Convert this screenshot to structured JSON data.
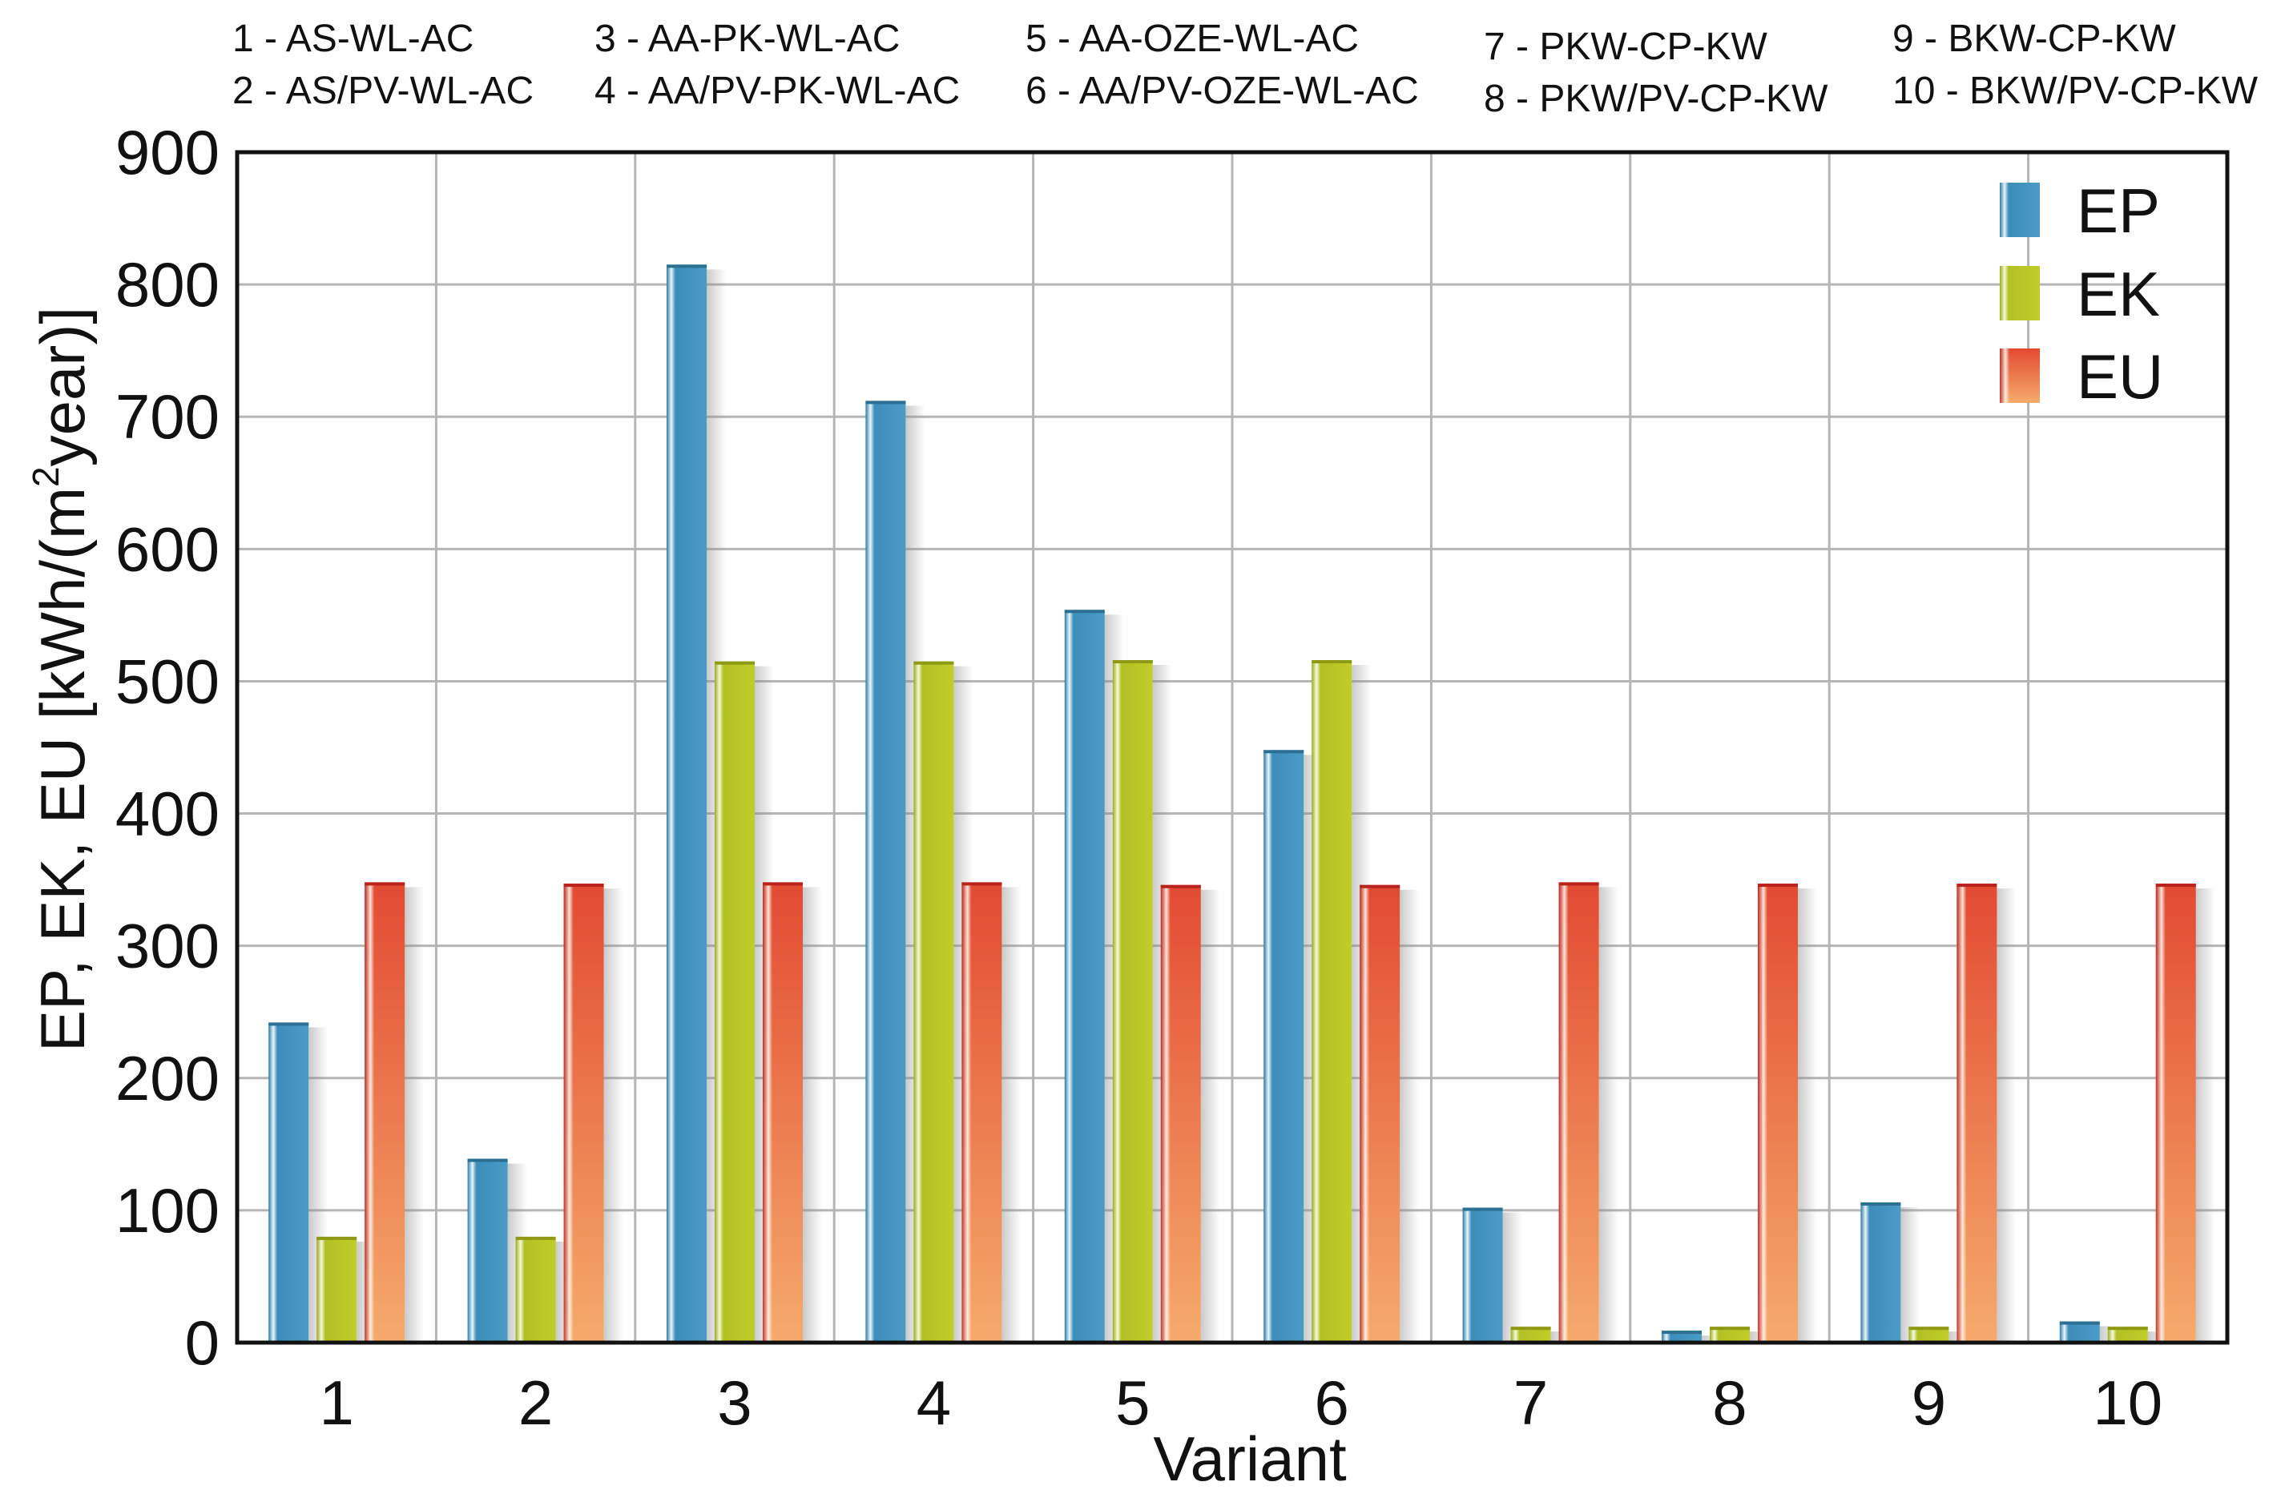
{
  "chart_data": {
    "type": "bar",
    "title": "",
    "xlabel": "Variant",
    "ylabel_main": "EP, EK, EU [kWh/(m",
    "ylabel_sup": "2",
    "ylabel_tail": "year)]",
    "ylim": [
      0,
      900
    ],
    "yticks": [
      0,
      100,
      200,
      300,
      400,
      500,
      600,
      700,
      800,
      900
    ],
    "grid": true,
    "legend_position": "top-right",
    "categories": [
      "1",
      "2",
      "3",
      "4",
      "5",
      "6",
      "7",
      "8",
      "9",
      "10"
    ],
    "series": [
      {
        "name": "EP",
        "values": [
          242,
          139,
          815,
          712,
          554,
          448,
          102,
          9,
          106,
          16
        ]
      },
      {
        "name": "EK",
        "values": [
          80,
          80,
          515,
          515,
          516,
          516,
          12,
          12,
          12,
          12
        ]
      },
      {
        "name": "EU",
        "values": [
          348,
          347,
          348,
          348,
          346,
          346,
          348,
          347,
          347,
          347
        ]
      }
    ],
    "variant_legend": [
      "1 - AS-WL-AC",
      "2 - AS/PV-WL-AC",
      "3 - AA-PK-WL-AC",
      "4 - AA/PV-PK-WL-AC",
      "5 - AA-OZE-WL-AC",
      "6 - AA/PV-OZE-WL-AC",
      "7 - PKW-CP-KW",
      "8 - PKW/PV-CP-KW",
      "9 - BKW-CP-KW",
      "10 - BKW/PV-CP-KW"
    ]
  },
  "colors": {
    "EP": "#3f90ba",
    "EP_dark": "#2b6f93",
    "EK": "#b5c323",
    "EK_dark": "#8e9a16",
    "EU": "#e8563a",
    "EU_light": "#f5a86a",
    "EU_dark": "#b8241b",
    "grid": "#b5b5b5",
    "frame": "#111111"
  }
}
